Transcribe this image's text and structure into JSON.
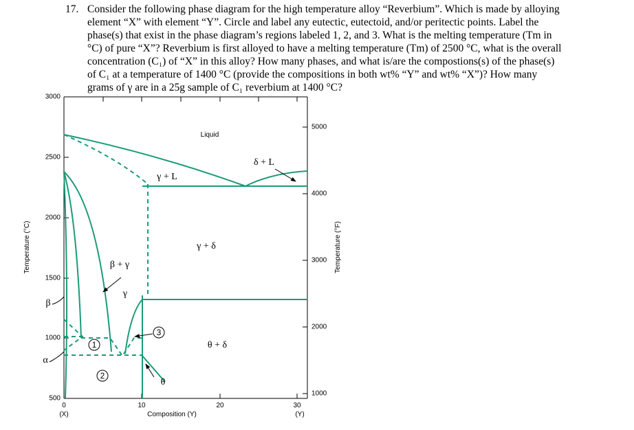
{
  "question": {
    "number": "17.",
    "lines": [
      "Consider the following phase diagram for the high temperature alloy “Reverbium”. Which is made by alloying",
      "element “X” with element “Y”. Circle and label any eutectic, eutectoid, and/or peritectic points. Label the",
      "phase(s) that exist in the phase diagram’s regions labeled 1, 2, and 3. What is the melting temperature (Tm in",
      "°C) of pure “X”? Reverbium is first alloyed to have a melting temperature (Tm) of 2500 °C, what is the overall",
      "concentration (C₁) of “X” in this alloy? How many phases, and what is/are the compostions(s) of the phase(s)",
      "of C₁ at a temperature of 1400 °C (provide the compositions in both wt% “Y” and wt% “X”)? How many",
      "grams of γ are in a 25g sample of C₁ reverbium at 1400 °C?"
    ]
  },
  "diagram": {
    "y_label": "Temperature (°C)",
    "y2_label": "Temperature (°F)",
    "x_label": "Composition (Y)",
    "x_end_left": "(X)",
    "x_end_right": "(Y)",
    "yticks": [
      "3000",
      "2500",
      "2000",
      "1500",
      "1000",
      "500"
    ],
    "y2ticks": [
      "5000",
      "4000",
      "3000",
      "2000",
      "1000"
    ],
    "xticks": [
      "0",
      "10",
      "20",
      "30"
    ],
    "regions": {
      "liquid": "Liquid",
      "gamma_l": "γ + L",
      "delta_l": "δ + L",
      "gamma_delta": "γ + δ",
      "beta_gamma": "β + γ",
      "gamma": "γ",
      "theta_delta": "θ + δ",
      "theta": "θ",
      "beta": "β",
      "alpha": "α"
    },
    "circled": [
      "1",
      "2",
      "3"
    ]
  }
}
